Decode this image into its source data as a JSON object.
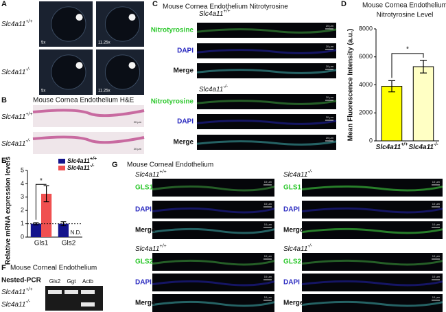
{
  "chart_data": [
    {
      "type": "bar",
      "panel": "D",
      "title": [
        "Mouse Cornea Endothelium",
        "Nitrotyrosine Level"
      ],
      "categories": [
        "Slc4a11+/+",
        "Slc4a11-/-"
      ],
      "values": [
        3900,
        5300
      ],
      "errors": [
        400,
        450
      ],
      "colors": [
        "#ffff00",
        "#ffffc4"
      ],
      "ylabel": "Mean Fluorescence Intensity (a.u.)",
      "ylim": [
        0,
        8000
      ],
      "yticks": [
        0,
        2000,
        4000,
        6000,
        8000
      ],
      "significance": "*"
    },
    {
      "type": "grouped-bar",
      "panel": "E",
      "categories": [
        "Gls1",
        "Gls2"
      ],
      "series": [
        {
          "name": "Slc4a11+/+",
          "color": "#14148c",
          "values": [
            1,
            1
          ],
          "errors": [
            0.08,
            0.15
          ]
        },
        {
          "name": "Slc4a11-/-",
          "color": "#f05050",
          "values": [
            3.25,
            null
          ],
          "errors": [
            0.6,
            null
          ]
        }
      ],
      "ylabel": "Relative mRNA expression levels",
      "ylim": [
        0,
        5
      ],
      "yticks": [
        0,
        1,
        2,
        3,
        4,
        5
      ],
      "reference_line": 1,
      "significance": "*",
      "missing_label": "N.D."
    }
  ],
  "panels": {
    "A": {
      "letter": "A",
      "rows": [
        "Slc4a11+/+",
        "Slc4a11-/-"
      ],
      "magnifications": [
        "5x",
        "11.25x",
        "5x",
        "11.25x"
      ]
    },
    "B": {
      "letter": "B",
      "title": "Mouse Cornea Endothelium H&E",
      "rows": [
        "Slc4a11+/+",
        "Slc4a11-/-"
      ],
      "scale": "20 µm"
    },
    "C": {
      "letter": "C",
      "title": "Mouse Cornea Endothelium Nitrotyrosine",
      "genotypes": [
        "Slc4a11+/+",
        "Slc4a11-/-"
      ],
      "channels": [
        "Nitrotyrosine",
        "DAPI",
        "Merge"
      ],
      "scale": "20 µm"
    },
    "F": {
      "letter": "F",
      "title": "Mouse Corneal Endothelium",
      "method": "Nested-PCR",
      "genes": [
        "Gls2",
        "Ggt",
        "Actb"
      ],
      "rows": [
        "Slc4a11+/+",
        "Slc4a11-/-"
      ]
    },
    "G": {
      "letter": "G",
      "title": "Mouse Corneal Endothelium",
      "genotypes": [
        "Slc4a11+/+",
        "Slc4a11-/-"
      ],
      "groups": [
        [
          "GLS1",
          "DAPI",
          "Merge"
        ],
        [
          "GLS2",
          "DAPI",
          "Merge"
        ]
      ],
      "scale": "10 µm"
    }
  }
}
